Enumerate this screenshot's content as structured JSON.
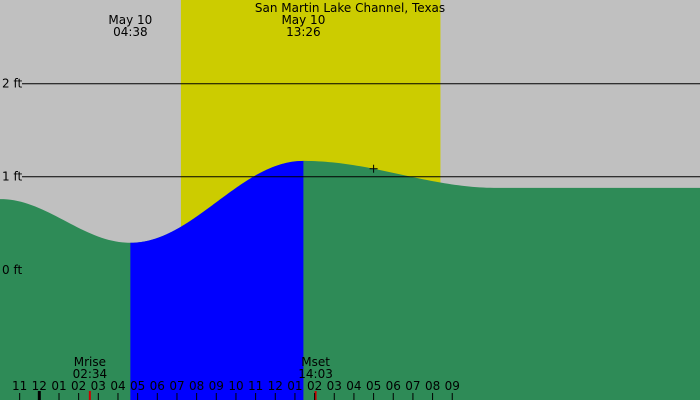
{
  "chart_data": {
    "type": "area",
    "title": "San Martin Lake Channel, Texas",
    "y_unit": "ft",
    "y_ticks": [
      {
        "label": "2 ft",
        "value": 2
      },
      {
        "label": "1 ft",
        "value": 1
      },
      {
        "label": "0 ft",
        "value": 0
      }
    ],
    "ylim": [
      -1.4,
      2.9
    ],
    "x_hours": [
      -2,
      33.6
    ],
    "x_tick_labels": [
      "11",
      "12",
      "01",
      "02",
      "03",
      "04",
      "05",
      "06",
      "07",
      "08",
      "09",
      "10",
      "11",
      "12",
      "01",
      "02",
      "03",
      "04",
      "05",
      "06",
      "07",
      "08",
      "09"
    ],
    "x_tick_start_hour": -1,
    "daylight": {
      "start_hour": 7.2,
      "end_hour": 20.4
    },
    "tide_curve": [
      {
        "hour": -2,
        "height": 0.76
      },
      {
        "hour": 4.63,
        "height": 0.29
      },
      {
        "hour": 13.43,
        "height": 1.17
      },
      {
        "hour": 23.3,
        "height": 0.88
      },
      {
        "hour": 33.6,
        "height": 0.88
      }
    ],
    "highlight": {
      "start_hour": 4.63,
      "end_hour": 13.43
    },
    "events": [
      {
        "date": "May 10",
        "time": "04:38",
        "hour": 4.63
      },
      {
        "date": "May 10",
        "time": "13:26",
        "hour": 13.43
      }
    ],
    "moon": [
      {
        "label": "Mrise",
        "time": "02:34",
        "hour": 2.57
      },
      {
        "label": "Mset",
        "time": "14:03",
        "hour": 14.05
      }
    ],
    "now_marker_hour": 17,
    "colors": {
      "night": "#c0c0c0",
      "day": "#cccc00",
      "tide": "#2e8b57",
      "highlight": "#0000ff",
      "grid": "#000000",
      "moon_tick": "#cc0000"
    }
  }
}
